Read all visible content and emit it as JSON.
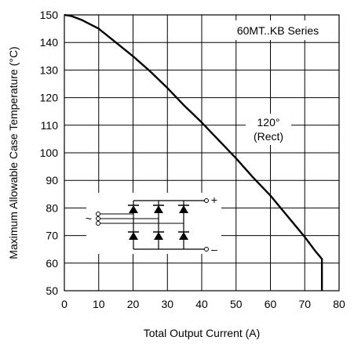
{
  "chart_data": {
    "type": "line",
    "title": "",
    "xlabel": "Total Output Current (A)",
    "ylabel": "Maximum Allowable Case Temperature (°C)",
    "xlim": [
      0,
      80
    ],
    "ylim": [
      50,
      150
    ],
    "x_ticks": [
      0,
      10,
      20,
      30,
      40,
      50,
      60,
      70,
      80
    ],
    "y_ticks": [
      50,
      60,
      70,
      80,
      90,
      100,
      110,
      120,
      130,
      140,
      150
    ],
    "grid": true,
    "series": [
      {
        "x": [
          0,
          2,
          5,
          10,
          15,
          20,
          25,
          30,
          35,
          40,
          45,
          50,
          55,
          60,
          65,
          70,
          73,
          75,
          75
        ],
        "y": [
          150,
          149.6,
          148.2,
          145,
          140,
          135,
          129.5,
          123.5,
          117,
          111,
          104.5,
          98,
          91,
          84.5,
          77,
          69.5,
          64.5,
          61.5,
          50
        ]
      }
    ],
    "annotations": {
      "series_label": "60MT..KB Series",
      "curve_label_line1": "120°",
      "curve_label_line2": "(Rect)",
      "plus_sign": "+",
      "minus_sign": "–",
      "ac_symbol": "~"
    }
  }
}
